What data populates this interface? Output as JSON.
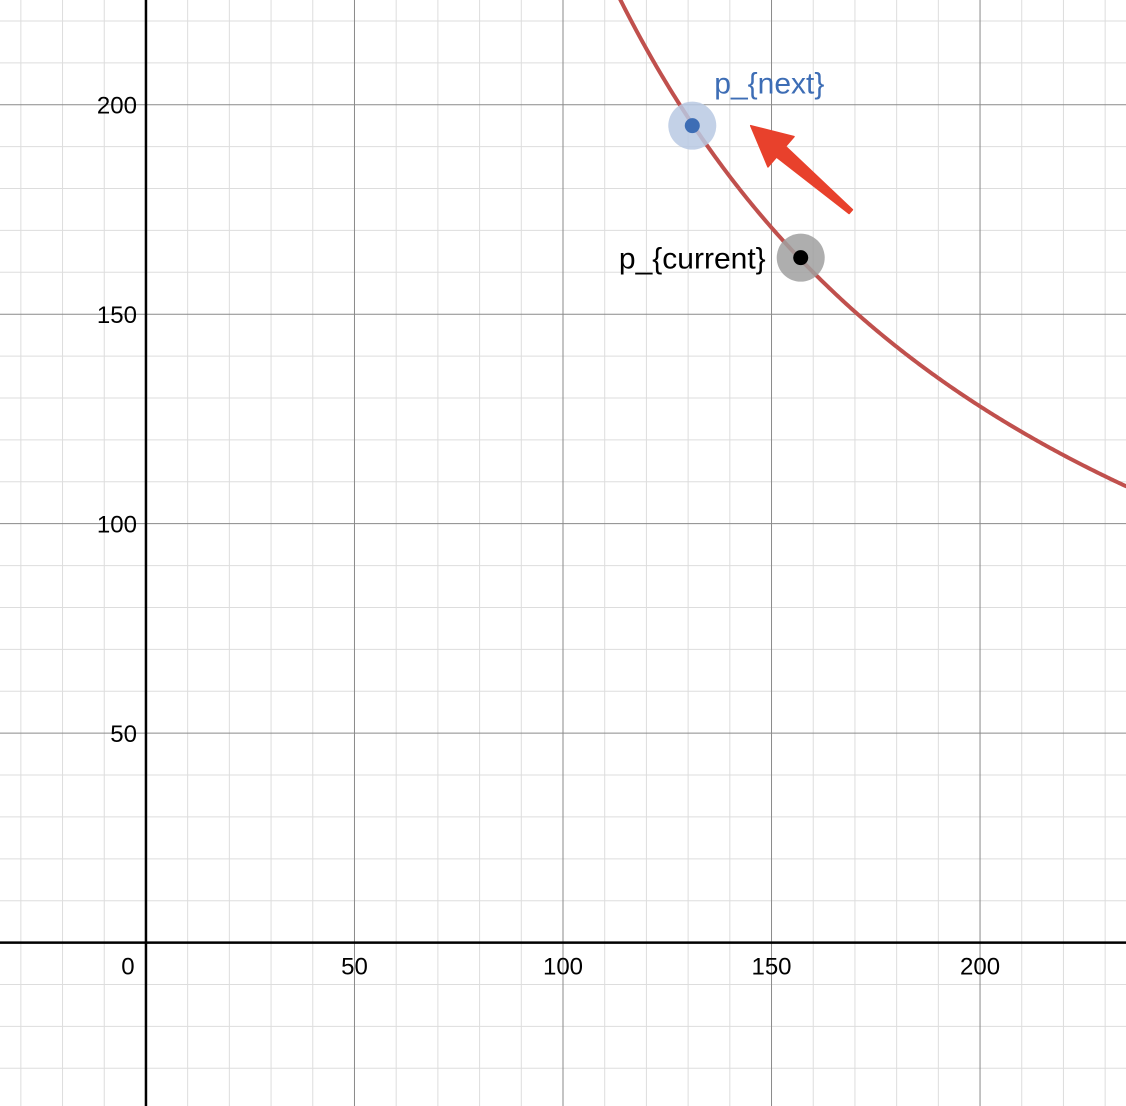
{
  "chart_data": {
    "type": "line",
    "title": "",
    "xlabel": "",
    "ylabel": "",
    "xlim": [
      -35,
      235
    ],
    "ylim": [
      -39,
      225
    ],
    "grid": true,
    "minor_grid_step": 10,
    "major_grid_step": 50,
    "x_ticks": [
      0,
      50,
      100,
      150,
      200
    ],
    "y_ticks": [
      50,
      100,
      150,
      200
    ],
    "x_tick_labels": [
      "0",
      "50",
      "100",
      "150",
      "200"
    ],
    "y_tick_labels": [
      "50",
      "100",
      "150",
      "200"
    ],
    "series": [
      {
        "kind": "curve",
        "equation": "x*y = 25600",
        "color": "#c0504d",
        "x_range": [
          113,
          235
        ]
      }
    ],
    "points": [
      {
        "label": "p_{next}",
        "x": 131,
        "y": 195,
        "color": "#3d6db5",
        "halo_color": "#b8c9e3",
        "label_position": "above-right"
      },
      {
        "label": "p_{current}",
        "x": 157,
        "y": 163.5,
        "color": "#000000",
        "halo_color": "#a0a0a0",
        "label_position": "left"
      }
    ],
    "annotations": [
      {
        "kind": "arrow",
        "color": "#e8412c",
        "from": [
          169,
          174.5
        ],
        "to": [
          145,
          195
        ]
      }
    ]
  }
}
